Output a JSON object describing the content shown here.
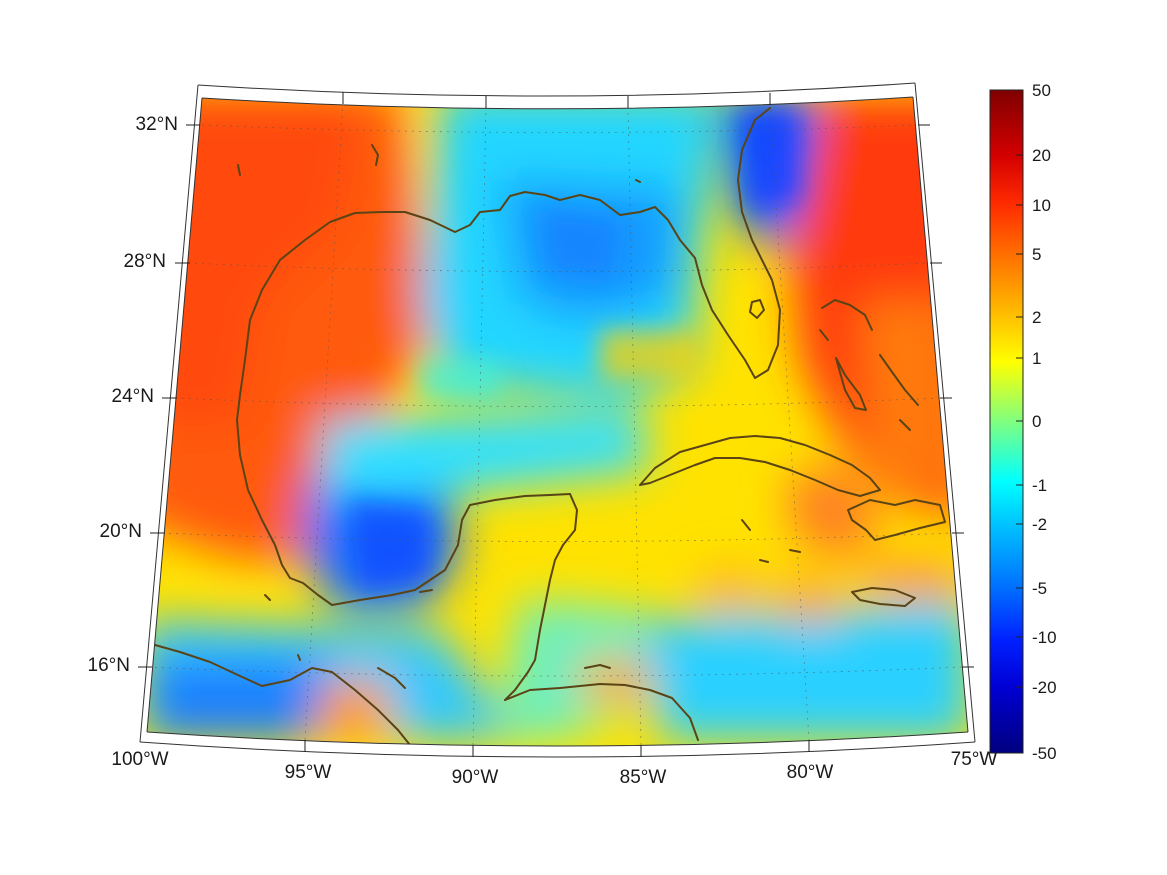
{
  "map": {
    "lat_labels": [
      {
        "value": 32,
        "text": "32°N"
      },
      {
        "value": 28,
        "text": "28°N"
      },
      {
        "value": 24,
        "text": "24°N"
      },
      {
        "value": 20,
        "text": "20°N"
      },
      {
        "value": 16,
        "text": "16°N"
      }
    ],
    "lon_labels": [
      {
        "value": -100,
        "text": "100°W"
      },
      {
        "value": -95,
        "text": "95°W"
      },
      {
        "value": -90,
        "text": "90°W"
      },
      {
        "value": -85,
        "text": "85°W"
      },
      {
        "value": -80,
        "text": "80°W"
      },
      {
        "value": -75,
        "text": "75°W"
      }
    ],
    "extent": {
      "lon": [
        -100,
        -75
      ],
      "lat": [
        14,
        33
      ]
    },
    "coastline_color": "#5a4416",
    "colormap": "jet"
  },
  "colorbar": {
    "ticks": [
      "50",
      "20",
      "10",
      "5",
      "2",
      "1",
      "0",
      "-1",
      "-2",
      "-5",
      "-10",
      "-20",
      "-50"
    ],
    "max_color": "#7f0000",
    "min_color": "#00007f"
  }
}
